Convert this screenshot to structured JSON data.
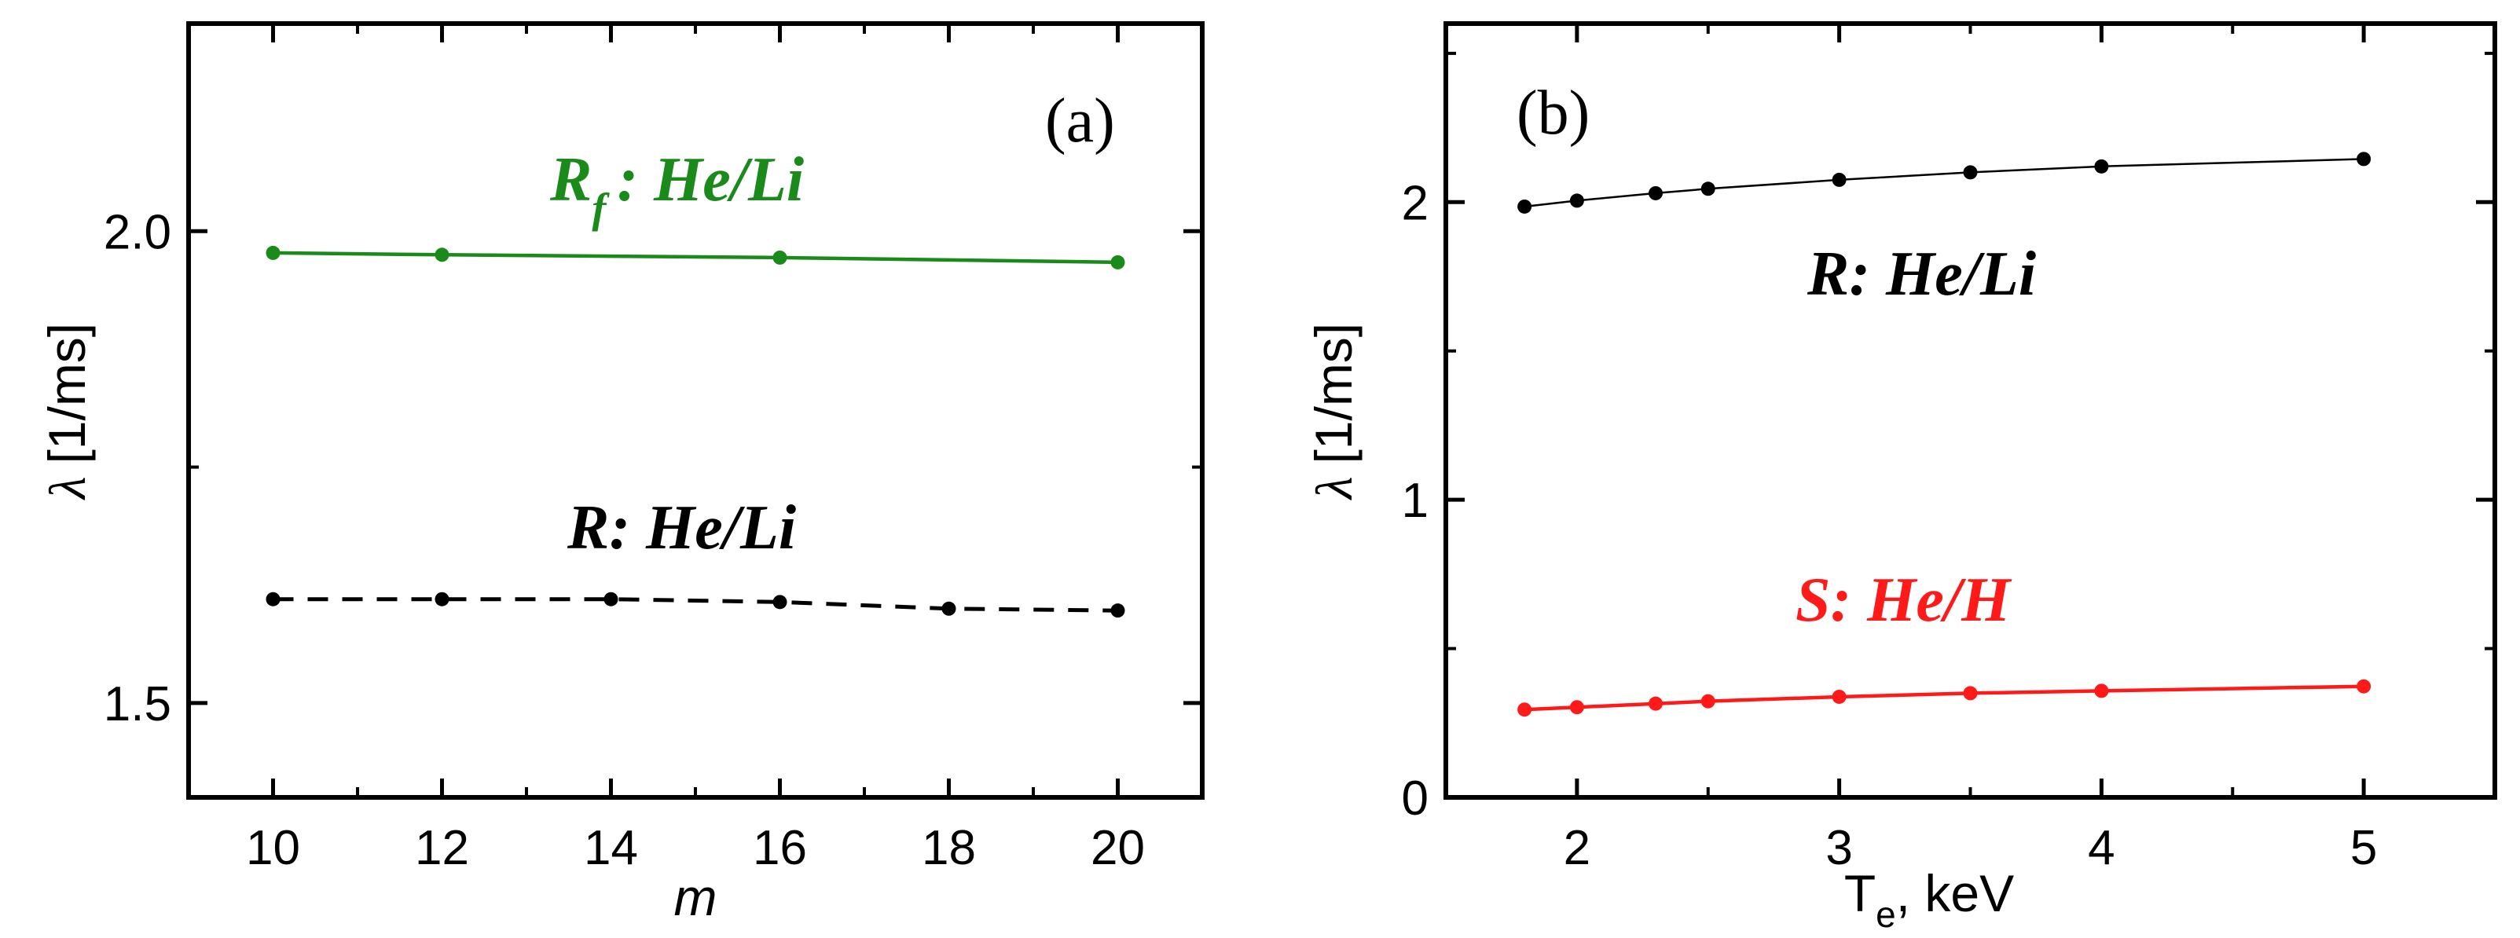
{
  "chart_data": [
    {
      "panel_label": "(a)",
      "type": "line",
      "xlabel": "m",
      "ylabel_symbol": "λ",
      "ylabel_unit": "[1/ms]",
      "xlim": [
        9,
        21
      ],
      "ylim": [
        1.4,
        2.22
      ],
      "xticks": [
        10,
        12,
        14,
        16,
        18,
        20
      ],
      "xticklabels": [
        "10",
        "12",
        "14",
        "16",
        "18",
        "20"
      ],
      "yticks": [
        1.5,
        2.0
      ],
      "yticklabels": [
        "1.5",
        "2.0"
      ],
      "series": [
        {
          "name": "R_f : He/Li",
          "label_main": "R",
          "label_sub": "f",
          "label_rest": ": He/Li",
          "color": "#1a8a1a",
          "linestyle": "solid",
          "x": [
            10,
            12,
            16,
            20
          ],
          "y": [
            1.977,
            1.975,
            1.972,
            1.967
          ]
        },
        {
          "name": "R: He/Li",
          "label_main": "R: He/Li",
          "color": "#000000",
          "linestyle": "dashed",
          "x": [
            10,
            12,
            14,
            16,
            18,
            20
          ],
          "y": [
            1.61,
            1.61,
            1.61,
            1.607,
            1.6,
            1.598
          ]
        }
      ]
    },
    {
      "panel_label": "(b)",
      "type": "line",
      "xlabel": "T",
      "xlabel_sub": "e",
      "xlabel_rest": ", keV",
      "ylabel_symbol": "λ",
      "ylabel_unit": "[1/ms]",
      "xlim": [
        1.5,
        5.5
      ],
      "ylim": [
        0,
        2.6
      ],
      "xticks": [
        2,
        3,
        4,
        5
      ],
      "xticklabels": [
        "2",
        "3",
        "4",
        "5"
      ],
      "yticks": [
        0,
        1,
        2
      ],
      "yticklabels": [
        "0",
        "1",
        "2"
      ],
      "series": [
        {
          "name": "R: He/Li",
          "label_main": "R: He/Li",
          "color": "#000000",
          "linestyle": "solid",
          "x": [
            1.8,
            2.0,
            2.3,
            2.5,
            3.0,
            3.5,
            4.0,
            5.0
          ],
          "y": [
            1.985,
            2.005,
            2.03,
            2.045,
            2.075,
            2.1,
            2.12,
            2.145
          ]
        },
        {
          "name": "S: He/H",
          "label_main": "S: He/H",
          "color": "#ff1a1a",
          "linestyle": "solid",
          "x": [
            1.8,
            2.0,
            2.3,
            2.5,
            3.0,
            3.5,
            4.0,
            5.0
          ],
          "y": [
            0.295,
            0.303,
            0.315,
            0.323,
            0.338,
            0.35,
            0.358,
            0.373
          ]
        }
      ]
    }
  ]
}
